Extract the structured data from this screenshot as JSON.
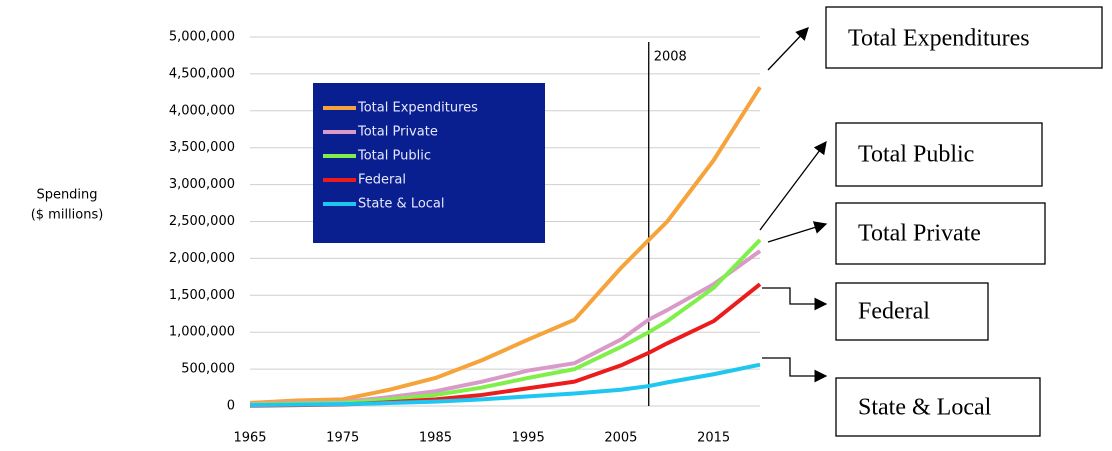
{
  "chart_data": {
    "type": "line",
    "ylabel": [
      "Spending",
      "($ millions)"
    ],
    "x": [
      1965,
      1970,
      1975,
      1980,
      1985,
      1990,
      1995,
      2000,
      2005,
      2008,
      2010,
      2015,
      2020
    ],
    "series": [
      {
        "name": "Total Expenditures",
        "color": "#f5a33a",
        "values": [
          42000,
          75000,
          90000,
          220000,
          380000,
          620000,
          900000,
          1170000,
          1870000,
          2250000,
          2500000,
          3330000,
          4320000
        ]
      },
      {
        "name": "Total Private",
        "color": "#d99ac9",
        "values": [
          25000,
          40000,
          55000,
          120000,
          200000,
          330000,
          480000,
          580000,
          900000,
          1170000,
          1300000,
          1650000,
          2100000
        ]
      },
      {
        "name": "Total Public",
        "color": "#80ef4a",
        "values": [
          17000,
          30000,
          40000,
          90000,
          150000,
          250000,
          380000,
          500000,
          800000,
          1000000,
          1150000,
          1600000,
          2250000
        ]
      },
      {
        "name": "Federal",
        "color": "#ec1c1c",
        "values": [
          5000,
          12000,
          20000,
          50000,
          90000,
          150000,
          240000,
          330000,
          550000,
          720000,
          850000,
          1150000,
          1650000
        ]
      },
      {
        "name": "State & Local",
        "color": "#1ec6f0",
        "values": [
          12000,
          18000,
          25000,
          40000,
          60000,
          90000,
          130000,
          170000,
          220000,
          270000,
          320000,
          430000,
          560000
        ]
      }
    ],
    "xlim": [
      1965,
      2020
    ],
    "xticks": [
      1965,
      1975,
      1985,
      1995,
      2005,
      2015
    ],
    "ylim": [
      0,
      5000000
    ],
    "yticks": [
      0,
      {
        "value": 500000,
        "label": "500,000"
      },
      {
        "value": 1000000,
        "label": "1,000,000"
      },
      {
        "value": 1500000,
        "label": "1,500,000"
      },
      {
        "value": 2000000,
        "label": "2,000,000"
      },
      {
        "value": 2500000,
        "label": "2,500,000"
      },
      {
        "value": 3000000,
        "label": "3,000,000"
      },
      {
        "value": 3500000,
        "label": "3,500,000"
      },
      {
        "value": 4000000,
        "label": "4,000,000"
      },
      {
        "value": 4500000,
        "label": "4,500,000"
      },
      {
        "value": 5000000,
        "label": "5,000,000"
      }
    ],
    "grid": true,
    "vline": {
      "x": 2008,
      "label": "2008"
    },
    "callouts": [
      "Total Expenditures",
      "Total Public",
      "Total Private",
      "Federal",
      "State & Local"
    ]
  }
}
